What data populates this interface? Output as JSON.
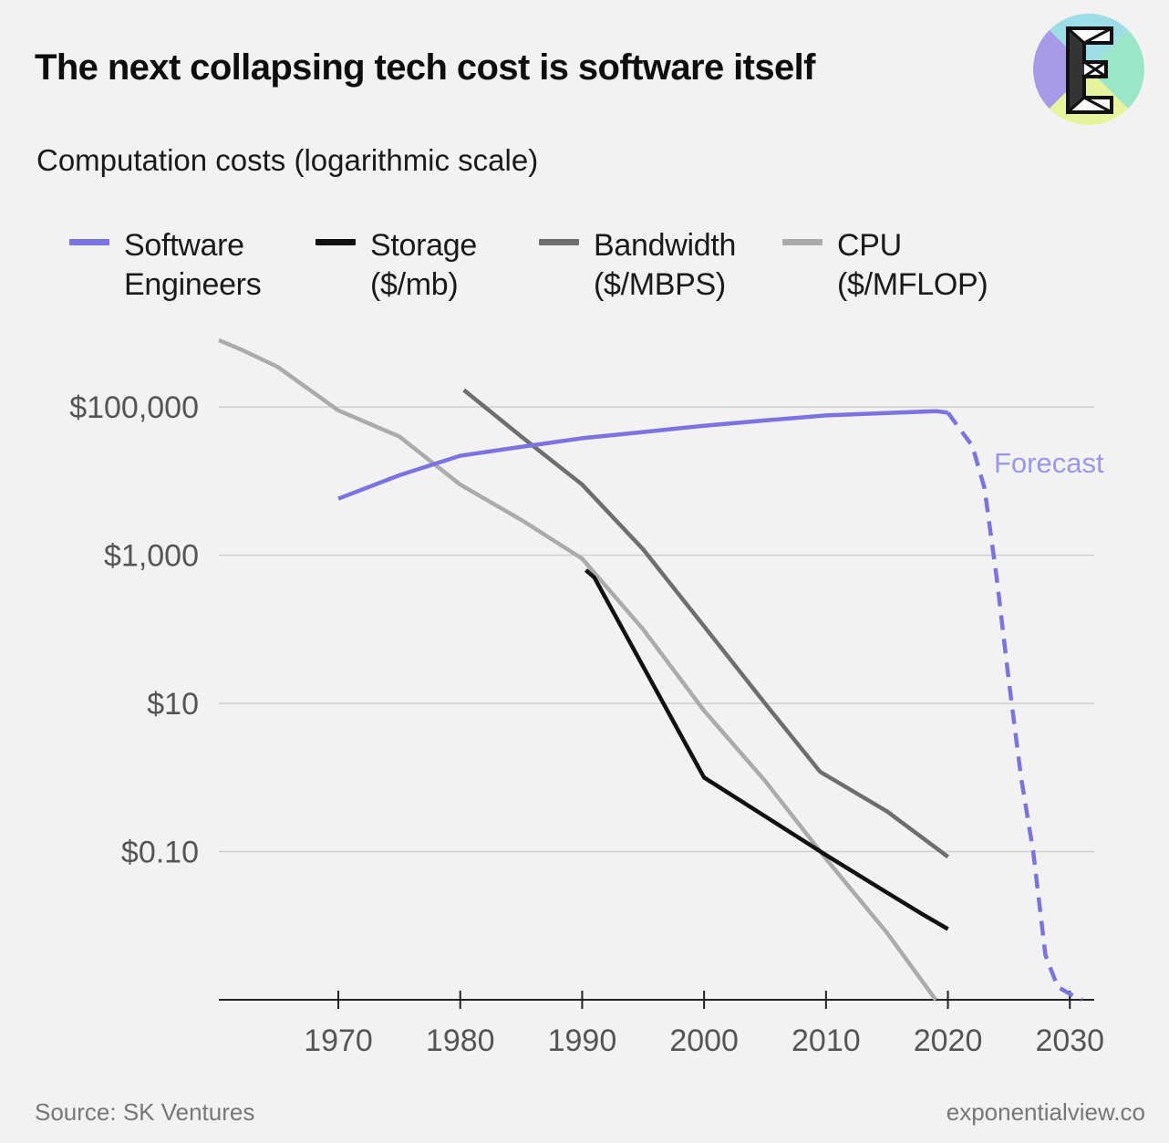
{
  "header": {
    "title": "The next collapsing tech cost is software itself",
    "subtitle": "Computation costs (logarithmic scale)"
  },
  "logo": {
    "letter": "E",
    "colors": [
      "#a79be8",
      "#9be6c8",
      "#e6f59b",
      "#9ddde6"
    ]
  },
  "footer": {
    "source": "Source: SK Ventures",
    "site": "exponentialview.co"
  },
  "legend": [
    {
      "line1": "Software",
      "line2": "Engineers",
      "color": "#7b73e2"
    },
    {
      "line1": "Storage",
      "line2": "($/mb)",
      "color": "#111111"
    },
    {
      "line1": "Bandwidth",
      "line2": "($/MBPS)",
      "color": "#6e6e6e"
    },
    {
      "line1": "CPU",
      "line2": "($/MFLOP)",
      "color": "#ababab"
    }
  ],
  "chart_data": {
    "type": "line",
    "title": "The next collapsing tech cost is software itself",
    "subtitle": "Computation costs (logarithmic scale)",
    "y_scale": "log",
    "xlim": [
      1960.2,
      2032
    ],
    "ylim": [
      0.001,
      1000000
    ],
    "x_ticks": [
      1970,
      1980,
      1990,
      2000,
      2010,
      2020,
      2030
    ],
    "x_tick_labels": [
      "1970",
      "1980",
      "1990",
      "2000",
      "2010",
      "2020",
      "2030"
    ],
    "y_ticks": [
      0.1,
      10,
      1000,
      100000
    ],
    "y_tick_labels": [
      "$0.10",
      "$10",
      "$1,000",
      "$100,000"
    ],
    "grid": "horizontal",
    "annotation": "Forecast",
    "series": [
      {
        "name": "Software Engineers",
        "color": "#7b73e2",
        "points": [
          [
            1970,
            5800
          ],
          [
            1975,
            12000
          ],
          [
            1980,
            22000
          ],
          [
            1985,
            29000
          ],
          [
            1990,
            38000
          ],
          [
            1995,
            46000
          ],
          [
            2000,
            56000
          ],
          [
            2005,
            66000
          ],
          [
            2010,
            77000
          ],
          [
            2015,
            83000
          ],
          [
            2019,
            88000
          ],
          [
            2020,
            84000
          ]
        ]
      },
      {
        "name": "Software Engineers (Forecast)",
        "color": "#7b73e2",
        "dashed": true,
        "points": [
          [
            2020,
            84000
          ],
          [
            2021,
            50000
          ],
          [
            2022,
            30000
          ],
          [
            2023,
            8000
          ],
          [
            2024,
            500
          ],
          [
            2025,
            20
          ],
          [
            2026,
            1
          ],
          [
            2027,
            0.1
          ],
          [
            2028,
            0.004
          ],
          [
            2029,
            0.0015
          ],
          [
            2030,
            0.0012
          ],
          [
            2031,
            0.001
          ]
        ]
      },
      {
        "name": "Storage ($/mb)",
        "color": "#111111",
        "points": [
          [
            1990.3,
            630
          ],
          [
            1991,
            500
          ],
          [
            2000,
            1
          ],
          [
            2010,
            0.09
          ],
          [
            2015,
            0.028
          ],
          [
            2018,
            0.014
          ],
          [
            2020,
            0.009
          ]
        ]
      },
      {
        "name": "Bandwidth ($/MBPS)",
        "color": "#6e6e6e",
        "points": [
          [
            1980.3,
            170000
          ],
          [
            1985,
            40000
          ],
          [
            1990,
            9000
          ],
          [
            1995,
            1200
          ],
          [
            2000,
            110
          ],
          [
            2005,
            10
          ],
          [
            2009.5,
            1.2
          ],
          [
            2015,
            0.35
          ],
          [
            2020,
            0.085
          ]
        ]
      },
      {
        "name": "CPU ($/MFLOP)",
        "color": "#ababab",
        "points": [
          [
            1960.2,
            800000
          ],
          [
            1962,
            600000
          ],
          [
            1965,
            350000
          ],
          [
            1970,
            90000
          ],
          [
            1975,
            40000
          ],
          [
            1980,
            9000
          ],
          [
            1985,
            3000
          ],
          [
            1990,
            900
          ],
          [
            1995,
            100
          ],
          [
            2000,
            8
          ],
          [
            2005,
            0.9
          ],
          [
            2010,
            0.08
          ],
          [
            2015,
            0.008
          ],
          [
            2019,
            0.001
          ]
        ]
      }
    ]
  }
}
